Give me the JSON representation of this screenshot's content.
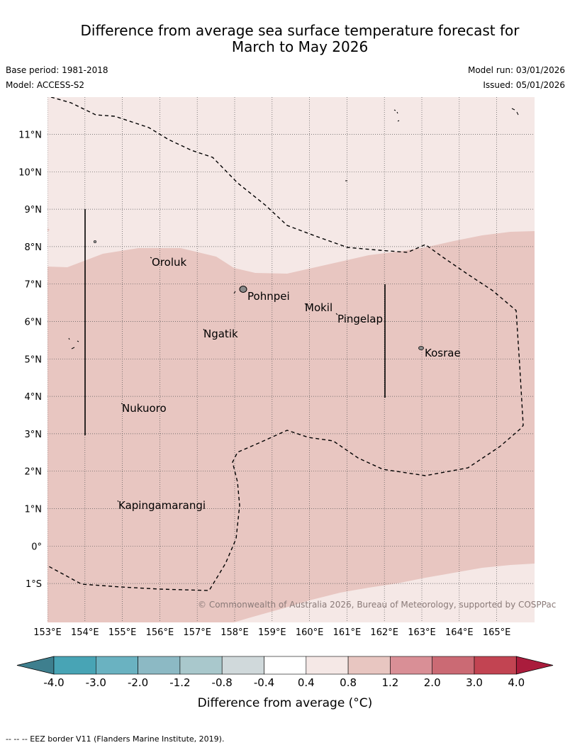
{
  "title": {
    "line1": "Difference from average sea surface temperature forecast for",
    "line2": "March to May 2026"
  },
  "meta": {
    "base_period": "Base period: 1981-2018",
    "model": "Model: ACCESS-S2",
    "model_run": "Model run: 03/01/2026",
    "issued": "Issued: 05/01/2026"
  },
  "map": {
    "lon_labels": [
      "153°E",
      "154°E",
      "155°E",
      "156°E",
      "157°E",
      "158°E",
      "159°E",
      "160°E",
      "161°E",
      "162°E",
      "163°E",
      "164°E",
      "165°E"
    ],
    "lat_labels": [
      "11°N",
      "10°N",
      "9°N",
      "8°N",
      "7°N",
      "6°N",
      "5°N",
      "4°N",
      "3°N",
      "2°N",
      "1°N",
      "0°",
      "1°S"
    ],
    "places": [
      "Oroluk",
      "Pohnpei",
      "Mokil",
      "Pingelap",
      "Ngatik",
      "Kosrae",
      "Nukuoro",
      "Kapingamarangi"
    ],
    "copyright": "© Commonwealth of Australia 2026, Bureau of Meteorology, supported by COSPPac",
    "colors": {
      "band_0_4_to_0_8": "#f5e8e6",
      "band_0_8_to_1_2": "#e8c6c1",
      "eez_line": "#000000",
      "grid": "#555555"
    }
  },
  "colorbar": {
    "ticks": [
      "-4.0",
      "-3.0",
      "-2.0",
      "-1.2",
      "-0.8",
      "-0.4",
      "0.4",
      "0.8",
      "1.2",
      "2.0",
      "3.0",
      "4.0"
    ],
    "colors": [
      "#3e7f8e",
      "#48a4b5",
      "#6ab2c1",
      "#8cb9c4",
      "#a9c8cc",
      "#d0d9db",
      "#ffffff",
      "#f5e8e6",
      "#e8c6c1",
      "#d98f96",
      "#cb6a74",
      "#c24452",
      "#aa1c3c"
    ],
    "label": "Difference from average (°C)"
  },
  "footer": "-- --  -- EEZ border V11 (Flanders Marine Institute, 2019)."
}
